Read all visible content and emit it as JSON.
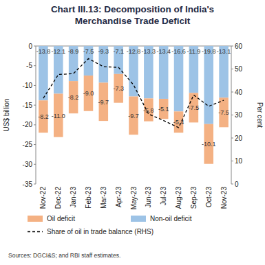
{
  "chart_data": {
    "type": "bar",
    "title": "Chart III.13: Decomposition of India's Merchandise Trade Deficit",
    "y_label": "US$ billion",
    "y2_label": "Per cent",
    "source": "Sources: DGCI&S; and RBI staff estimates.",
    "categories": [
      "Nov-22",
      "Dec-22",
      "Jan-23",
      "Feb-23",
      "Mar-23",
      "Apr-23",
      "May-23",
      "Jun-23",
      "Jul-23",
      "Aug-23",
      "Sep-23",
      "Oct-23",
      "Nov-23"
    ],
    "stacked": true,
    "data_labels": true,
    "legend": "bottom",
    "ylim": [
      -35,
      0
    ],
    "yticks": [
      -35,
      -30,
      -25,
      -20,
      -15,
      -10,
      -5,
      0
    ],
    "y2lim": [
      0,
      60
    ],
    "y2ticks": [
      0,
      10,
      20,
      30,
      40,
      50,
      60
    ],
    "series": [
      {
        "name": "Oil deficit",
        "type": "bar",
        "color": "#f4b183",
        "values": [
          -8.2,
          -11.0,
          -8.2,
          -9.0,
          -9.7,
          -7.3,
          -9.7,
          -5.8,
          -5.1,
          -5.4,
          -7.5,
          -10.1,
          -7.5
        ],
        "value_labels": [
          "-8.2",
          "-11.0",
          "-8.2",
          "-9.0",
          "-9.7",
          "-7.3",
          "-9.7",
          "-5.8",
          "-5.1",
          "-5.4",
          "-7.5",
          "-10.1",
          "-7.5"
        ]
      },
      {
        "name": "Non-oil deficit",
        "type": "bar",
        "color": "#9dc3e6",
        "values": [
          -13.8,
          -12.1,
          -8.9,
          -7.5,
          -9.3,
          -7.1,
          -12.8,
          -13.3,
          -13.4,
          -16.6,
          -11.9,
          -19.8,
          -13.1
        ]
      },
      {
        "name": "Share of oil in trade balance (RHS)",
        "type": "line",
        "axis": "y2",
        "color": "#000000",
        "line_style": "dashed",
        "values": [
          37.3,
          47.6,
          48.0,
          54.5,
          51.0,
          50.7,
          43.1,
          30.4,
          27.6,
          24.5,
          38.7,
          33.8,
          36.4
        ]
      }
    ]
  }
}
